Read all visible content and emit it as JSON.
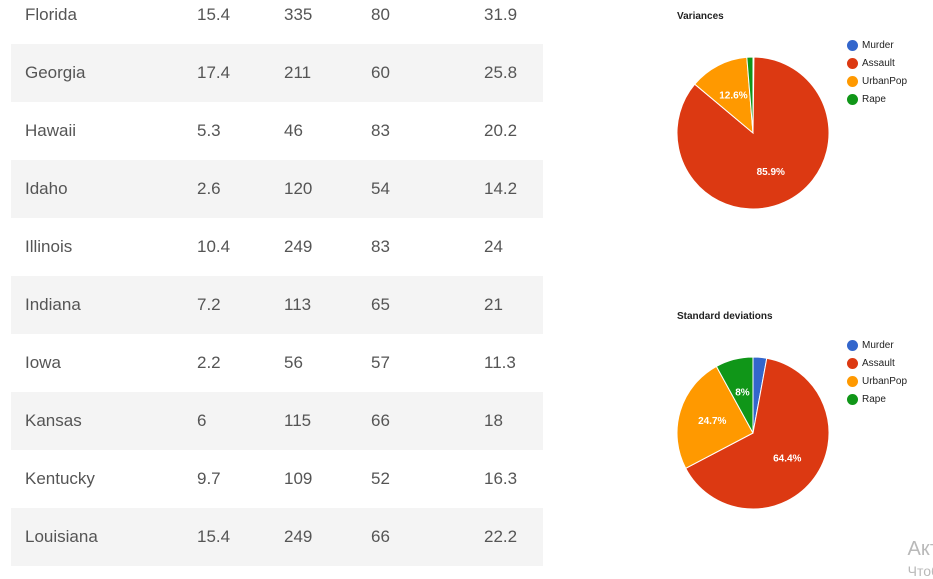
{
  "table": {
    "rows": [
      [
        "Florida",
        "15.4",
        "335",
        "80",
        "31.9"
      ],
      [
        "Georgia",
        "17.4",
        "211",
        "60",
        "25.8"
      ],
      [
        "Hawaii",
        "5.3",
        "46",
        "83",
        "20.2"
      ],
      [
        "Idaho",
        "2.6",
        "120",
        "54",
        "14.2"
      ],
      [
        "Illinois",
        "10.4",
        "249",
        "83",
        "24"
      ],
      [
        "Indiana",
        "7.2",
        "113",
        "65",
        "21"
      ],
      [
        "Iowa",
        "2.2",
        "56",
        "57",
        "11.3"
      ],
      [
        "Kansas",
        "6",
        "115",
        "66",
        "18"
      ],
      [
        "Kentucky",
        "9.7",
        "109",
        "52",
        "16.3"
      ],
      [
        "Louisiana",
        "15.4",
        "249",
        "66",
        "22.2"
      ]
    ]
  },
  "colors": {
    "Murder": "#3366cc",
    "Assault": "#dc3912",
    "UrbanPop": "#ff9900",
    "Rape": "#109618"
  },
  "chart_data": [
    {
      "type": "pie",
      "title": "Variances",
      "legend_position": "right",
      "slices": [
        {
          "name": "Murder",
          "value": 0.2,
          "label": ""
        },
        {
          "name": "Assault",
          "value": 85.9,
          "label": "85.9%"
        },
        {
          "name": "UrbanPop",
          "value": 12.6,
          "label": "12.6%"
        },
        {
          "name": "Rape",
          "value": 1.3,
          "label": ""
        }
      ]
    },
    {
      "type": "pie",
      "title": "Standard deviations",
      "legend_position": "right",
      "slices": [
        {
          "name": "Murder",
          "value": 2.9,
          "label": ""
        },
        {
          "name": "Assault",
          "value": 64.4,
          "label": "64.4%"
        },
        {
          "name": "UrbanPop",
          "value": 24.7,
          "label": "24.7%"
        },
        {
          "name": "Rape",
          "value": 8.0,
          "label": "8%"
        }
      ]
    }
  ],
  "watermark": {
    "line1": "Акт",
    "line2": "Чтоб"
  }
}
